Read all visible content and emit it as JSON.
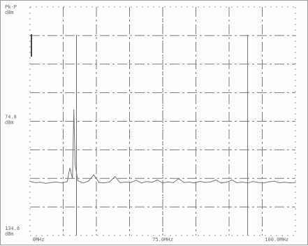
{
  "chart_data": {
    "type": "line",
    "title": "",
    "xlabel": "",
    "ylabel": "",
    "x_tick_labels": [
      "0MHz",
      "75.0MHz",
      "100.0MHz"
    ],
    "y_tick_labels": [
      {
        "lines": [
          "Pk-P",
          "dBm"
        ]
      },
      {
        "lines": [
          "74.8",
          "dBm"
        ]
      },
      {
        "lines": [
          "134.8",
          "dBm"
        ]
      }
    ],
    "xlim": [
      0,
      100
    ],
    "ylim": [
      0,
      100
    ],
    "grid": true,
    "series": [
      {
        "x": [
          0,
          2,
          4,
          6,
          8,
          10,
          12,
          14,
          15,
          16,
          16.5,
          17,
          18,
          20,
          22,
          24,
          26,
          28,
          30,
          32,
          34,
          36,
          38,
          40,
          42,
          44,
          46,
          48,
          50,
          52,
          54,
          56,
          58,
          60,
          62,
          64,
          66,
          68,
          70,
          72,
          74,
          76,
          78,
          80,
          82,
          84,
          86,
          88,
          90,
          92,
          94,
          96,
          98,
          100
        ],
        "y": [
          23.7,
          23.1,
          23.3,
          22.8,
          23.2,
          23.4,
          23.0,
          23.6,
          29.5,
          25.0,
          55.0,
          31.0,
          24.0,
          23.0,
          23.8,
          26.5,
          23.2,
          23.0,
          23.5,
          25.8,
          23.1,
          23.4,
          23.2,
          24.2,
          23.0,
          23.6,
          23.3,
          24.3,
          23.0,
          23.5,
          23.1,
          24.9,
          23.2,
          23.4,
          23.0,
          23.7,
          23.2,
          23.5,
          24.3,
          23.0,
          23.3,
          24.3,
          23.1,
          23.4,
          23.0,
          23.6,
          23.2,
          23.0,
          23.5,
          23.8,
          23.1,
          23.3,
          23.0,
          23.2
        ]
      }
    ],
    "markers": [
      17.5,
      82.0
    ]
  }
}
